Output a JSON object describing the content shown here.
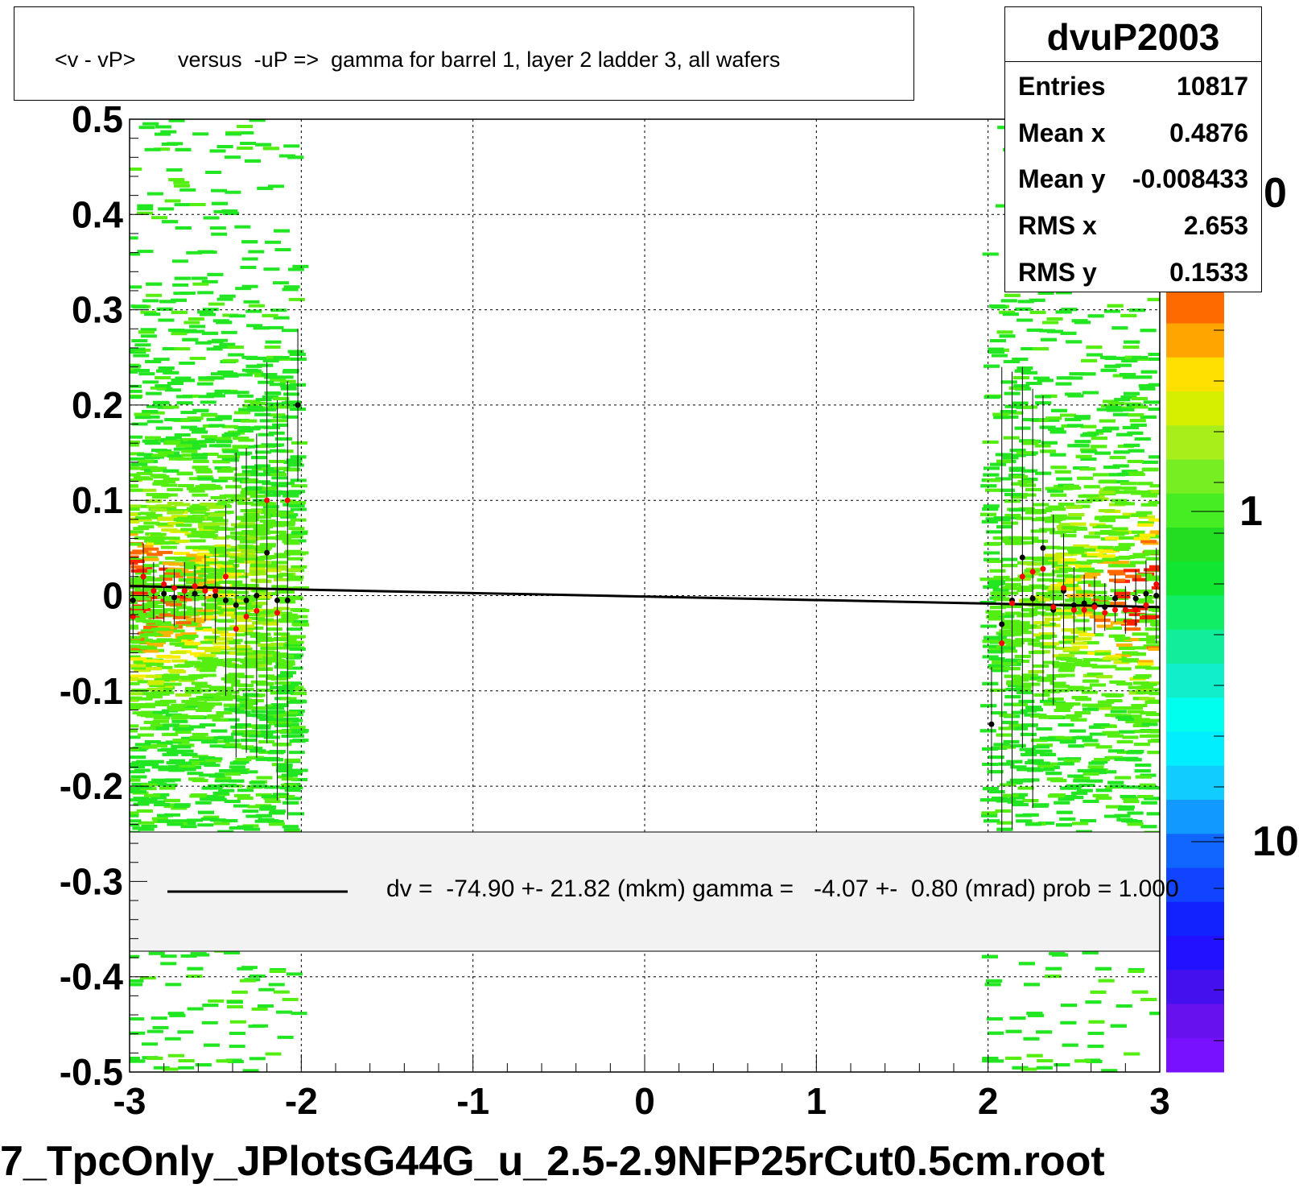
{
  "title": "<v - vP>       versus  -uP =>  gamma for barrel 1, layer 2 ladder 3, all wafers",
  "stats": {
    "name": "dvuP2003",
    "rows": [
      {
        "key": "Entries",
        "value": "10817"
      },
      {
        "key": "Mean x",
        "value": "0.4876"
      },
      {
        "key": "Mean y",
        "value": "-0.008433"
      },
      {
        "key": "RMS x",
        "value": "2.653"
      },
      {
        "key": "RMS y",
        "value": "0.1533"
      }
    ]
  },
  "legend": {
    "text": "dv =  -74.90 +- 21.82 (mkm) gamma =   -4.07 +-  0.80 (mrad) prob = 1.000"
  },
  "footer": {
    "filename": "7_TpcOnly_JPlotsG44G_u_2.5-2.9NFP25rCut0.5cm.root"
  },
  "palette_labels": [
    "0",
    "1",
    "10"
  ],
  "colors": {
    "fit_line": "#000000",
    "profile_black": "#000000",
    "profile_red": "#ff0000",
    "grid": "#000000",
    "legend_bg": "#f2f2f2"
  },
  "chart_data": {
    "type": "heatmap",
    "title": "<v - vP>       versus  -uP =>  gamma for barrel 1, layer 2 ladder 3, all wafers",
    "xlim": [
      -3,
      3
    ],
    "ylim": [
      -0.5,
      0.5
    ],
    "x_ticks": [
      "-3",
      "-2",
      "-1",
      "0",
      "1",
      "2",
      "3"
    ],
    "y_ticks": [
      "0.5",
      "0.4",
      "0.3",
      "0.2",
      "0.1",
      "0",
      "-0.1",
      "-0.2",
      "-0.3",
      "-0.4",
      "-0.5"
    ],
    "grid": true,
    "z_scale": "log",
    "fit_line": {
      "x": [
        -3,
        3
      ],
      "y": [
        0.01,
        -0.012
      ]
    },
    "profile_black": {
      "x": [
        -2.98,
        -2.92,
        -2.86,
        -2.8,
        -2.74,
        -2.68,
        -2.62,
        -2.56,
        -2.5,
        -2.44,
        -2.38,
        -2.32,
        -2.26,
        -2.2,
        -2.14,
        -2.08,
        -2.02,
        2.02,
        2.08,
        2.14,
        2.2,
        2.26,
        2.32,
        2.38,
        2.44,
        2.5,
        2.56,
        2.62,
        2.68,
        2.74,
        2.8,
        2.86,
        2.92,
        2.98
      ],
      "y": [
        -0.005,
        0.02,
        0.005,
        0.002,
        -0.002,
        0.005,
        0.002,
        0.008,
        0.0,
        -0.005,
        -0.01,
        -0.005,
        0.0,
        0.045,
        -0.005,
        -0.005,
        0.2,
        -0.135,
        -0.03,
        -0.005,
        0.04,
        -0.003,
        0.05,
        -0.015,
        0.005,
        -0.01,
        -0.008,
        -0.01,
        -0.012,
        -0.003,
        -0.015,
        -0.003,
        0.002,
        0.0
      ],
      "err": [
        0.04,
        0.035,
        0.03,
        0.03,
        0.03,
        0.03,
        0.03,
        0.035,
        0.05,
        0.1,
        0.16,
        0.16,
        0.17,
        0.2,
        0.21,
        0.23,
        0.08,
        0.06,
        0.27,
        0.24,
        0.2,
        0.22,
        0.16,
        0.1,
        0.06,
        0.04,
        0.03,
        0.03,
        0.025,
        0.025,
        0.025,
        0.03,
        0.035,
        0.05
      ]
    },
    "profile_red": {
      "x": [
        -2.98,
        -2.92,
        -2.86,
        -2.8,
        -2.74,
        -2.68,
        -2.62,
        -2.56,
        -2.5,
        -2.44,
        -2.38,
        -2.32,
        -2.26,
        -2.2,
        -2.14,
        -2.08,
        2.08,
        2.14,
        2.2,
        2.26,
        2.32,
        2.38,
        2.44,
        2.5,
        2.56,
        2.62,
        2.68,
        2.74,
        2.8,
        2.86,
        2.92,
        2.98
      ],
      "y": [
        -0.022,
        0.02,
        0.005,
        0.012,
        0.008,
        0.005,
        0.01,
        0.005,
        0.005,
        0.02,
        -0.035,
        -0.022,
        -0.016,
        0.1,
        -0.018,
        0.1,
        -0.05,
        -0.008,
        0.02,
        0.025,
        0.028,
        -0.012,
        0.008,
        -0.015,
        -0.015,
        -0.012,
        -0.018,
        -0.015,
        -0.015,
        -0.015,
        -0.01,
        0.012
      ]
    }
  }
}
